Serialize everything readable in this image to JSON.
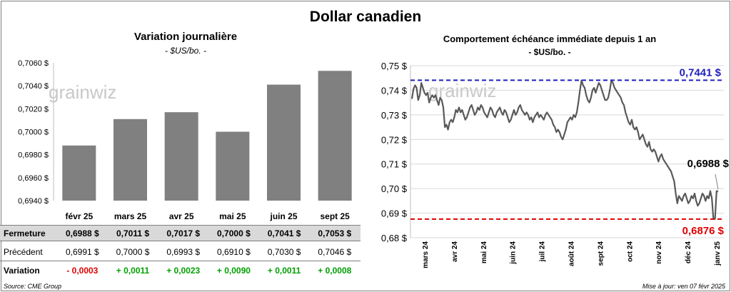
{
  "title": "Dollar canadien",
  "left": {
    "title": "Variation  journalière",
    "subtitle": "- $US/bo. -"
  },
  "right": {
    "title": "Comportement échéance immédiate depuis 1 an",
    "subtitle": "- $US/bo. -"
  },
  "watermark": "grainwiz",
  "table": {
    "labels": [
      "Fermeture",
      "Précédent",
      "Variation"
    ],
    "fermeture": [
      "0,6988  $",
      "0,7011  $",
      "0,7017  $",
      "0,7000  $",
      "0,7041  $",
      "0,7053  $"
    ],
    "precedent": [
      "0,6991  $",
      "0,7000  $",
      "0,6993  $",
      "0,6910  $",
      "0,7030  $",
      "0,7046  $"
    ],
    "variation": [
      "- 0,0003",
      "+ 0,0011",
      "+ 0,0023",
      "+ 0,0090",
      "+ 0,0011",
      "+ 0,0008"
    ],
    "variation_sign": [
      "neg",
      "pos",
      "pos",
      "pos",
      "pos",
      "pos"
    ]
  },
  "source": "Source: CME Group",
  "updated": "Mise à jour: ven 07 févr 2025",
  "colors": {
    "bar": "#808080",
    "line": "#595959",
    "high": "#1f1fbf",
    "low": "#e00000",
    "pos": "#00a000",
    "neg": "#e00000"
  },
  "chart_data": [
    {
      "type": "bar",
      "categories": [
        "févr 25",
        "mars 25",
        "avr 25",
        "mai 25",
        "juin 25",
        "sept 25"
      ],
      "values": [
        0.6988,
        0.7011,
        0.7017,
        0.7,
        0.7041,
        0.7053
      ],
      "ylim": [
        0.694,
        0.706
      ],
      "yticks": [
        0.694,
        0.696,
        0.698,
        0.7,
        0.702,
        0.704,
        0.706
      ],
      "ytick_labels": [
        "0,6940 $",
        "0,6960 $",
        "0,6980 $",
        "0,7000 $",
        "0,7020 $",
        "0,7040 $",
        "0,7060 $"
      ],
      "grid": false
    },
    {
      "type": "line",
      "ylim": [
        0.68,
        0.75
      ],
      "yticks": [
        0.68,
        0.69,
        0.7,
        0.71,
        0.72,
        0.73,
        0.74,
        0.75
      ],
      "ytick_labels": [
        "0,68 $",
        "0,69 $",
        "0,70 $",
        "0,71 $",
        "0,72 $",
        "0,73 $",
        "0,74 $",
        "0,75 $"
      ],
      "x_labels": [
        "mars 24",
        "avr 24",
        "mai 24",
        "juin 24",
        "juil 24",
        "août 24",
        "sept 24",
        "oct 24",
        "nov 24",
        "déc 24",
        "janv 25"
      ],
      "grid": "horizontal",
      "series": [
        {
          "values": [
            0.7365,
            0.7405,
            0.742,
            0.741,
            0.736,
            0.738,
            0.743,
            0.741,
            0.739,
            0.738,
            0.739,
            0.735,
            0.737,
            0.738,
            0.737,
            0.738,
            0.736,
            0.734,
            0.737,
            0.736,
            0.733,
            0.725,
            0.726,
            0.724,
            0.727,
            0.728,
            0.727,
            0.729,
            0.732,
            0.731,
            0.733,
            0.731,
            0.732,
            0.73,
            0.728,
            0.729,
            0.731,
            0.733,
            0.734,
            0.732,
            0.73,
            0.731,
            0.733,
            0.732,
            0.734,
            0.733,
            0.731,
            0.73,
            0.729,
            0.731,
            0.733,
            0.732,
            0.73,
            0.729,
            0.731,
            0.732,
            0.733,
            0.731,
            0.73,
            0.732,
            0.731,
            0.729,
            0.727,
            0.728,
            0.73,
            0.732,
            0.73,
            0.731,
            0.733,
            0.734,
            0.732,
            0.731,
            0.73,
            0.731,
            0.73,
            0.728,
            0.729,
            0.727,
            0.729,
            0.73,
            0.731,
            0.729,
            0.73,
            0.729,
            0.728,
            0.73,
            0.731,
            0.73,
            0.729,
            0.728,
            0.726,
            0.725,
            0.723,
            0.724,
            0.723,
            0.721,
            0.72,
            0.722,
            0.724,
            0.727,
            0.728,
            0.729,
            0.728,
            0.73,
            0.729,
            0.731,
            0.735,
            0.74,
            0.744,
            0.742,
            0.741,
            0.738,
            0.736,
            0.735,
            0.737,
            0.74,
            0.741,
            0.739,
            0.741,
            0.743,
            0.742,
            0.74,
            0.738,
            0.736,
            0.736,
            0.737,
            0.74,
            0.744,
            0.743,
            0.741,
            0.74,
            0.739,
            0.738,
            0.737,
            0.735,
            0.734,
            0.731,
            0.729,
            0.727,
            0.726,
            0.728,
            0.725,
            0.724,
            0.725,
            0.723,
            0.72,
            0.721,
            0.722,
            0.72,
            0.718,
            0.717,
            0.719,
            0.716,
            0.715,
            0.716,
            0.715,
            0.713,
            0.711,
            0.713,
            0.714,
            0.712,
            0.711,
            0.71,
            0.709,
            0.708,
            0.707,
            0.705,
            0.703,
            0.698,
            0.694,
            0.697,
            0.696,
            0.695,
            0.697,
            0.698,
            0.696,
            0.694,
            0.695,
            0.697,
            0.696,
            0.698,
            0.695,
            0.693,
            0.694,
            0.696,
            0.698,
            0.697,
            0.695,
            0.697,
            0.696,
            0.699,
            0.696,
            0.6876,
            0.6876,
            0.699,
            0.6988
          ]
        }
      ],
      "annotations": {
        "high": {
          "value": 0.7441,
          "label": "0,7441 $"
        },
        "low": {
          "value": 0.6876,
          "label": "0,6876 $"
        },
        "last": {
          "value": 0.6988,
          "label": "0,6988 $"
        }
      }
    }
  ]
}
